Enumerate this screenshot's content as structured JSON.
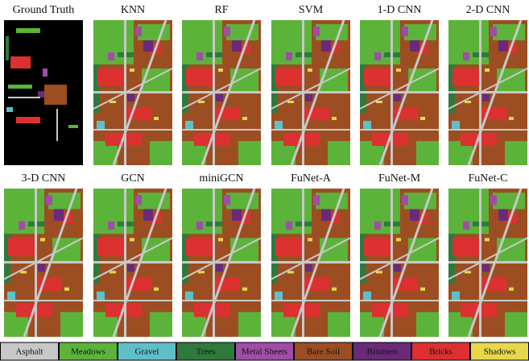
{
  "panels": [
    "Ground Truth",
    "KNN",
    "RF",
    "SVM",
    "1-D CNN",
    "2-D CNN",
    "3-D CNN",
    "GCN",
    "miniGCN",
    "FuNet-A",
    "FuNet-M",
    "FuNet-C"
  ],
  "legend": [
    {
      "label": "Asphalt",
      "color": "#c8c8c8"
    },
    {
      "label": "Meadows",
      "color": "#5cb33a"
    },
    {
      "label": "Gravel",
      "color": "#5fbfc8"
    },
    {
      "label": "Trees",
      "color": "#2e7a3c"
    },
    {
      "label": "Metal Sheets",
      "color": "#a04ca8"
    },
    {
      "label": "Bare Soil",
      "color": "#9c4e22"
    },
    {
      "label": "Bitumen",
      "color": "#6a2a7a"
    },
    {
      "label": "Bricks",
      "color": "#dd3030"
    },
    {
      "label": "Shadows",
      "color": "#e6d84a"
    }
  ]
}
